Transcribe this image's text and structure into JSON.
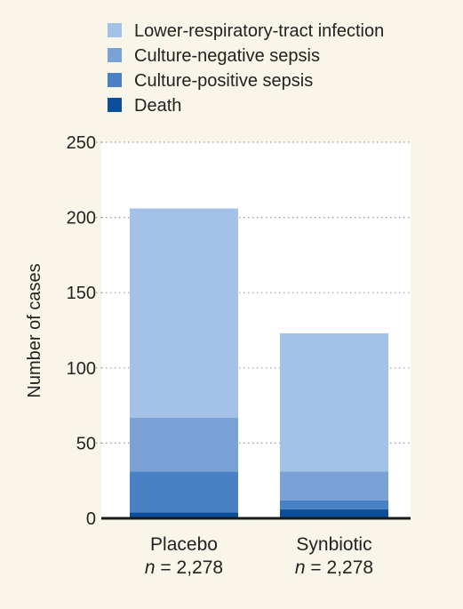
{
  "chart_data": {
    "type": "bar",
    "stacked": true,
    "categories": [
      "Placebo",
      "Synbiotic"
    ],
    "category_sublabels": [
      {
        "n_symbol": "n",
        "n_text": " = 2,278"
      },
      {
        "n_symbol": "n",
        "n_text": " = 2,278"
      }
    ],
    "series": [
      {
        "name": "Death",
        "values": [
          4,
          6
        ],
        "color": "#0b4f9c"
      },
      {
        "name": "Culture-positive sepsis",
        "values": [
          27,
          6
        ],
        "color": "#4a80c4"
      },
      {
        "name": "Culture-negative sepsis",
        "values": [
          36,
          19
        ],
        "color": "#7aa2d6"
      },
      {
        "name": "Lower-respiratory-tract infection",
        "values": [
          139,
          92
        ],
        "color": "#a4c2e8"
      }
    ],
    "legend_order": [
      "Lower-respiratory-tract infection",
      "Culture-negative sepsis",
      "Culture-positive sepsis",
      "Death"
    ],
    "title": "",
    "xlabel": "",
    "ylabel": "Number of cases",
    "ylim": [
      0,
      250
    ],
    "yticks": [
      0,
      50,
      100,
      150,
      200,
      250
    ],
    "grid": "horizontal dotted",
    "legend_position": "top"
  },
  "colors": {
    "page_background": "#f9f5e9",
    "plot_background": "#ffffff",
    "axis": "#1a1a1a",
    "grid": "#9a9a9a"
  }
}
